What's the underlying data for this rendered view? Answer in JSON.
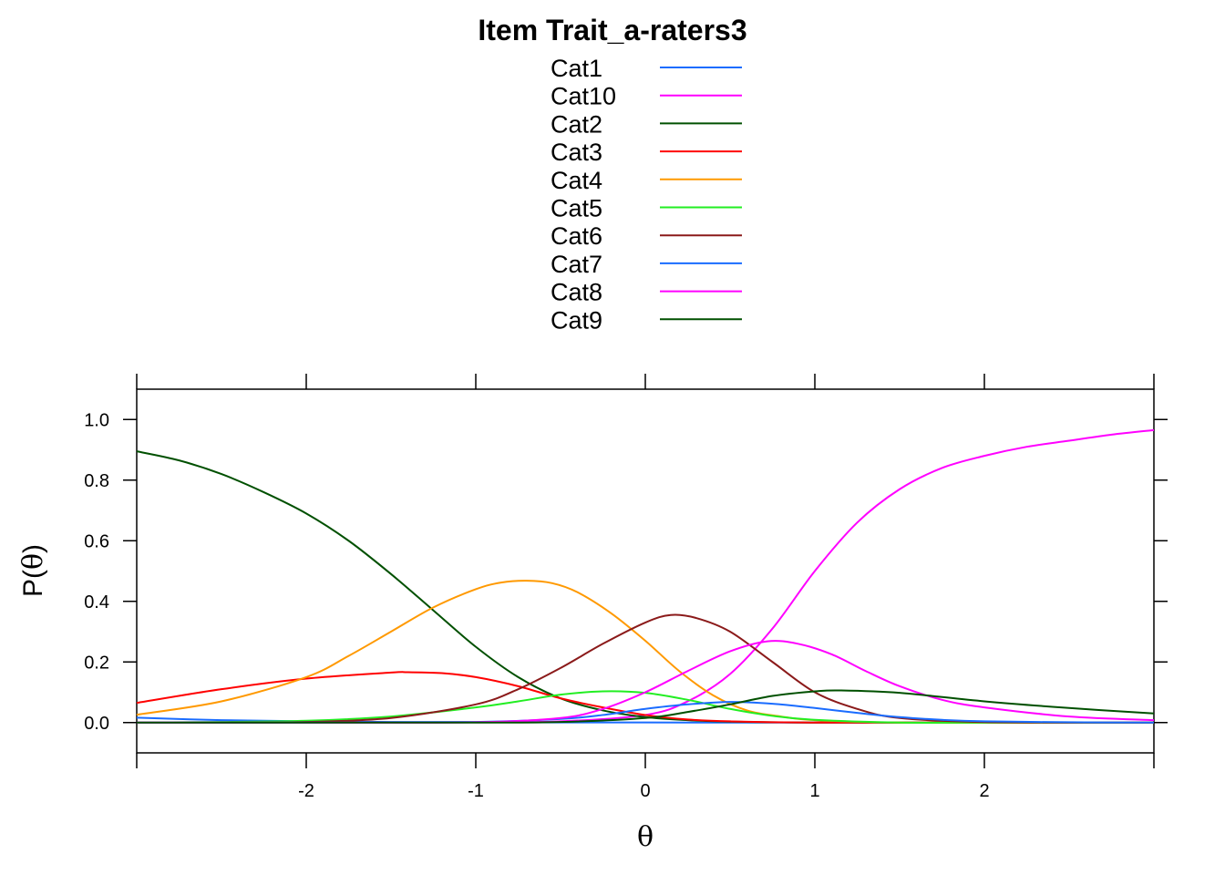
{
  "chart_data": {
    "type": "line",
    "title": "Item Trait_a-raters3",
    "xlabel": "θ",
    "ylabel_prefix": "P(",
    "ylabel_symbol": "θ",
    "ylabel_suffix": ")",
    "xlim": [
      -3,
      3
    ],
    "ylim": [
      -0.1,
      1.1
    ],
    "x_ticks": [
      -2,
      -1,
      0,
      1,
      2
    ],
    "x_tick_labels": [
      "-2",
      "-1",
      "0",
      "1",
      "2"
    ],
    "y_ticks": [
      0.0,
      0.2,
      0.4,
      0.6,
      0.8,
      1.0
    ],
    "y_tick_labels": [
      "0.0",
      "0.2",
      "0.4",
      "0.6",
      "0.8",
      "1.0"
    ],
    "grid": false,
    "legend_position": "top",
    "series": [
      {
        "name": "Cat1",
        "color": "#1a6cff",
        "x": [
          -3,
          -2.5,
          -2,
          -1.5,
          -1,
          -0.5,
          0,
          0.5,
          1,
          1.5,
          2,
          2.5,
          3
        ],
        "y": [
          0.016,
          0.008,
          0.004,
          0.002,
          0.001,
          0.0005,
          0.0002,
          0.0001,
          0.0,
          0.0,
          0.0,
          0.0,
          0.0
        ]
      },
      {
        "name": "Cat10",
        "color": "#ff00ff",
        "x": [
          -3,
          -2.5,
          -2,
          -1.5,
          -1,
          -0.5,
          0,
          0.25,
          0.5,
          0.75,
          1,
          1.25,
          1.5,
          1.75,
          2,
          2.25,
          2.5,
          2.75,
          3
        ],
        "y": [
          0.0,
          0.0,
          0.0,
          0.0,
          0.0005,
          0.004,
          0.025,
          0.07,
          0.16,
          0.31,
          0.5,
          0.66,
          0.77,
          0.84,
          0.88,
          0.91,
          0.93,
          0.95,
          0.965
        ]
      },
      {
        "name": "Cat2",
        "color": "#005000",
        "x": [
          -3,
          -2.75,
          -2.5,
          -2.25,
          -2,
          -1.75,
          -1.5,
          -1.25,
          -1,
          -0.75,
          -0.5,
          -0.25,
          0,
          0.25,
          0.5,
          1,
          2,
          3
        ],
        "y": [
          0.895,
          0.865,
          0.82,
          0.76,
          0.69,
          0.6,
          0.49,
          0.37,
          0.25,
          0.15,
          0.08,
          0.04,
          0.018,
          0.008,
          0.003,
          0.0,
          0.0,
          0.0
        ]
      },
      {
        "name": "Cat3",
        "color": "#ff0000",
        "x": [
          -3,
          -2.5,
          -2,
          -1.5,
          -1.4,
          -1.2,
          -1,
          -0.75,
          -0.5,
          -0.25,
          0,
          0.25,
          0.5,
          1,
          2,
          3
        ],
        "y": [
          0.065,
          0.11,
          0.145,
          0.165,
          0.166,
          0.163,
          0.15,
          0.12,
          0.08,
          0.05,
          0.025,
          0.01,
          0.004,
          0.0,
          0.0,
          0.0
        ]
      },
      {
        "name": "Cat4",
        "color": "#ff9900",
        "x": [
          -3,
          -2.5,
          -2,
          -1.75,
          -1.5,
          -1.25,
          -1,
          -0.85,
          -0.7,
          -0.55,
          -0.4,
          -0.2,
          0,
          0.2,
          0.4,
          0.6,
          0.8,
          1,
          1.5,
          2,
          3
        ],
        "y": [
          0.026,
          0.07,
          0.15,
          0.22,
          0.3,
          0.38,
          0.44,
          0.462,
          0.468,
          0.46,
          0.43,
          0.36,
          0.27,
          0.17,
          0.09,
          0.04,
          0.02,
          0.008,
          0.0,
          0.0,
          0.0
        ]
      },
      {
        "name": "Cat5",
        "color": "#22ee22",
        "x": [
          -3,
          -2.5,
          -2,
          -1.5,
          -1,
          -0.75,
          -0.5,
          -0.25,
          0,
          0.25,
          0.5,
          0.75,
          1,
          1.5,
          2,
          3
        ],
        "y": [
          0.0,
          0.002,
          0.006,
          0.02,
          0.05,
          0.07,
          0.092,
          0.103,
          0.098,
          0.075,
          0.045,
          0.022,
          0.009,
          0.0,
          0.0,
          0.0
        ]
      },
      {
        "name": "Cat6",
        "color": "#8b1a1a",
        "x": [
          -3,
          -2.5,
          -2,
          -1.5,
          -1,
          -0.75,
          -0.5,
          -0.25,
          0,
          0.15,
          0.3,
          0.5,
          0.75,
          1,
          1.25,
          1.5,
          2,
          3
        ],
        "y": [
          0.0,
          0.0,
          0.002,
          0.015,
          0.06,
          0.11,
          0.18,
          0.26,
          0.33,
          0.355,
          0.345,
          0.3,
          0.2,
          0.1,
          0.045,
          0.015,
          0.002,
          0.0
        ]
      },
      {
        "name": "Cat7",
        "color": "#1a6cff",
        "x": [
          -3,
          -2,
          -1,
          -0.5,
          -0.25,
          0,
          0.25,
          0.5,
          0.75,
          1,
          1.25,
          1.5,
          1.75,
          2,
          2.5,
          3
        ],
        "y": [
          0.0,
          0.0,
          0.002,
          0.012,
          0.025,
          0.045,
          0.06,
          0.068,
          0.062,
          0.048,
          0.032,
          0.018,
          0.009,
          0.004,
          0.001,
          0.0
        ]
      },
      {
        "name": "Cat8",
        "color": "#ff00ff",
        "x": [
          -3,
          -2,
          -1,
          -0.5,
          -0.25,
          0,
          0.25,
          0.5,
          0.72,
          0.9,
          1.1,
          1.3,
          1.5,
          1.75,
          2,
          2.5,
          3
        ],
        "y": [
          0.0,
          0.0,
          0.001,
          0.015,
          0.045,
          0.1,
          0.17,
          0.235,
          0.268,
          0.26,
          0.225,
          0.17,
          0.12,
          0.075,
          0.05,
          0.02,
          0.008
        ]
      },
      {
        "name": "Cat9",
        "color": "#005000",
        "x": [
          -3,
          -2,
          -1,
          -0.5,
          0,
          0.25,
          0.5,
          0.75,
          1,
          1.15,
          1.5,
          2,
          2.5,
          3
        ],
        "y": [
          0.0,
          0.0,
          0.0,
          0.002,
          0.015,
          0.035,
          0.06,
          0.088,
          0.103,
          0.106,
          0.098,
          0.07,
          0.048,
          0.03
        ]
      }
    ]
  }
}
